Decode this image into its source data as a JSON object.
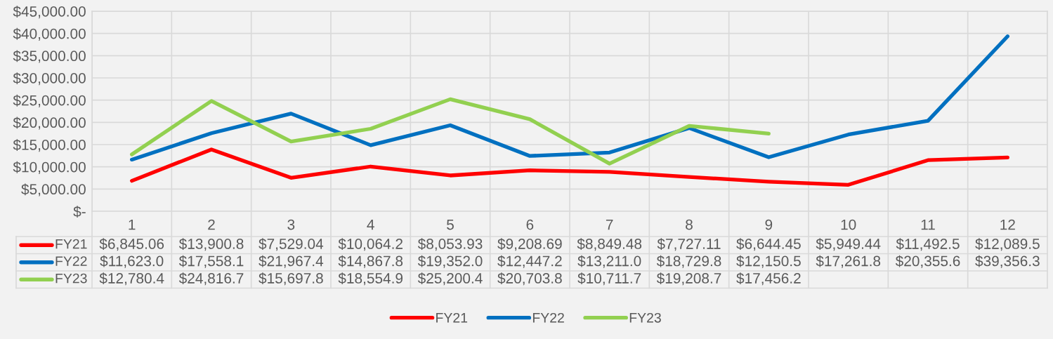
{
  "chart_data": {
    "type": "line",
    "categories": [
      "1",
      "2",
      "3",
      "4",
      "5",
      "6",
      "7",
      "8",
      "9",
      "10",
      "11",
      "12"
    ],
    "series": [
      {
        "name": "FY21",
        "color": "#ff0000",
        "values": [
          6845.06,
          13900.8,
          7529.04,
          10064.2,
          8053.93,
          9208.69,
          8849.48,
          7727.11,
          6644.45,
          5949.44,
          11492.5,
          12089.5
        ],
        "value_labels": [
          "$6,845.06",
          "$13,900.8",
          "$7,529.04",
          "$10,064.2",
          "$8,053.93",
          "$9,208.69",
          "$8,849.48",
          "$7,727.11",
          "$6,644.45",
          "$5,949.44",
          "$11,492.5",
          "$12,089.5"
        ]
      },
      {
        "name": "FY22",
        "color": "#0070c0",
        "values": [
          11623.0,
          17558.1,
          21967.4,
          14867.8,
          19352.0,
          12447.2,
          13211.0,
          18729.8,
          12150.5,
          17261.8,
          20355.6,
          39356.3
        ],
        "value_labels": [
          "$11,623.0",
          "$17,558.1",
          "$21,967.4",
          "$14,867.8",
          "$19,352.0",
          "$12,447.2",
          "$13,211.0",
          "$18,729.8",
          "$12,150.5",
          "$17,261.8",
          "$20,355.6",
          "$39,356.3"
        ]
      },
      {
        "name": "FY23",
        "color": "#92d050",
        "values": [
          12780.4,
          24816.7,
          15697.8,
          18554.9,
          25200.4,
          20703.8,
          10711.7,
          19208.7,
          17456.2,
          null,
          null,
          null
        ],
        "value_labels": [
          "$12,780.4",
          "$24,816.7",
          "$15,697.8",
          "$18,554.9",
          "$25,200.4",
          "$20,703.8",
          "$10,711.7",
          "$19,208.7",
          "$17,456.2",
          null,
          null,
          null
        ]
      }
    ],
    "ylim": [
      0,
      45000
    ],
    "yticks": [
      {
        "value": 0,
        "label": "$-"
      },
      {
        "value": 5000,
        "label": "$5,000.00"
      },
      {
        "value": 10000,
        "label": "$10,000.00"
      },
      {
        "value": 15000,
        "label": "$15,000.00"
      },
      {
        "value": 20000,
        "label": "$20,000.00"
      },
      {
        "value": 25000,
        "label": "$25,000.00"
      },
      {
        "value": 30000,
        "label": "$30,000.00"
      },
      {
        "value": 35000,
        "label": "$35,000.00"
      },
      {
        "value": 40000,
        "label": "$40,000.00"
      },
      {
        "value": 45000,
        "label": "$45,000.00"
      }
    ],
    "grid": true,
    "legend": "bottom",
    "line_style": "solid"
  }
}
